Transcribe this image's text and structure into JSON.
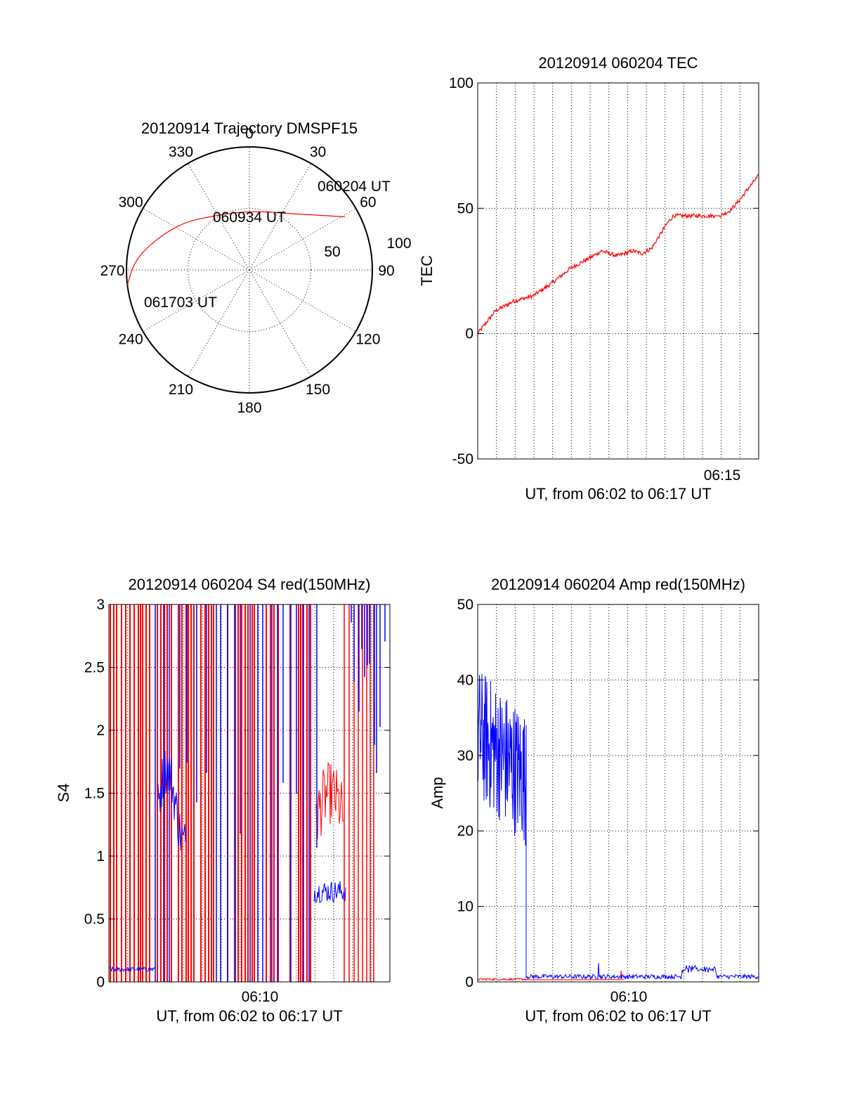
{
  "colors": {
    "red": "#ff0000",
    "blue": "#0000ff",
    "axis": "#000000",
    "background": "#ffffff"
  },
  "chart_data": [
    {
      "type": "polar",
      "title": "20120914 Trajectory DMSPF15",
      "angle_ticks": [
        "0",
        "30",
        "60",
        "90",
        "120",
        "150",
        "180",
        "210",
        "240",
        "270",
        "300",
        "330"
      ],
      "radial_ticks": [
        "50",
        "100"
      ],
      "rlim": [
        0,
        100
      ],
      "grid": true,
      "series": [
        {
          "color": "#ff0000",
          "points": [
            {
              "az": 61,
              "el": 10
            },
            {
              "az": 52,
              "el": 25
            },
            {
              "az": 38,
              "el": 38
            },
            {
              "az": 14,
              "el": 46
            },
            {
              "az": 350,
              "el": 47
            },
            {
              "az": 325,
              "el": 42
            },
            {
              "az": 305,
              "el": 30
            },
            {
              "az": 288,
              "el": 18
            },
            {
              "az": 275,
              "el": 6
            },
            {
              "az": 263,
              "el": 0
            }
          ]
        }
      ],
      "annotations": [
        "060204 UT",
        "060934 UT",
        "061703 UT"
      ]
    },
    {
      "type": "line",
      "title": "20120914 060204 TEC",
      "ylabel": "TEC",
      "xlabel": "UT, from 06:02 to 06:17 UT",
      "xlim": [
        "06:02:04",
        "06:17:03"
      ],
      "ylim": [
        -50,
        100
      ],
      "yticks": [
        "-50",
        "0",
        "50",
        "100"
      ],
      "xticks": [
        "06:15"
      ],
      "grid": true,
      "series": [
        {
          "color": "#ff0000",
          "x": [
            "06:02:04",
            "06:03:00",
            "06:04:00",
            "06:05:00",
            "06:06:00",
            "06:07:00",
            "06:08:00",
            "06:08:40",
            "06:09:30",
            "06:10:20",
            "06:10:50",
            "06:11:20",
            "06:11:40",
            "06:12:10",
            "06:12:30",
            "06:13:20",
            "06:14:00",
            "06:14:40",
            "06:15:00",
            "06:15:30",
            "06:16:00",
            "06:16:30",
            "06:17:03"
          ],
          "y": [
            0,
            9,
            13,
            15,
            20,
            26,
            30,
            33,
            31,
            33,
            32,
            34,
            38,
            44,
            47,
            47,
            47,
            47,
            47,
            49,
            53,
            58,
            63
          ]
        }
      ]
    },
    {
      "type": "line",
      "title": "20120914 060204 S4 red(150MHz)",
      "ylabel": "S4",
      "xlabel": "UT, from 06:02 to 06:17 UT",
      "xlim": [
        "06:02:04",
        "06:17:03"
      ],
      "ylim": [
        0,
        3
      ],
      "yticks": [
        "0",
        "0.5",
        "1",
        "1.5",
        "2",
        "2.5",
        "3"
      ],
      "xticks": [
        "06:10"
      ],
      "grid": true,
      "series": [
        {
          "color": "#ff0000"
        },
        {
          "color": "#0000ff"
        }
      ]
    },
    {
      "type": "line",
      "title": "20120914 060204 Amp red(150MHz)",
      "ylabel": "Amp",
      "xlabel": "UT, from 06:02 to 06:17 UT",
      "xlim": [
        "06:02:04",
        "06:17:03"
      ],
      "ylim": [
        0,
        50
      ],
      "yticks": [
        "0",
        "10",
        "20",
        "30",
        "40",
        "50"
      ],
      "xticks": [
        "06:10"
      ],
      "grid": true,
      "series": [
        {
          "color": "#ff0000"
        },
        {
          "color": "#0000ff"
        }
      ]
    }
  ]
}
